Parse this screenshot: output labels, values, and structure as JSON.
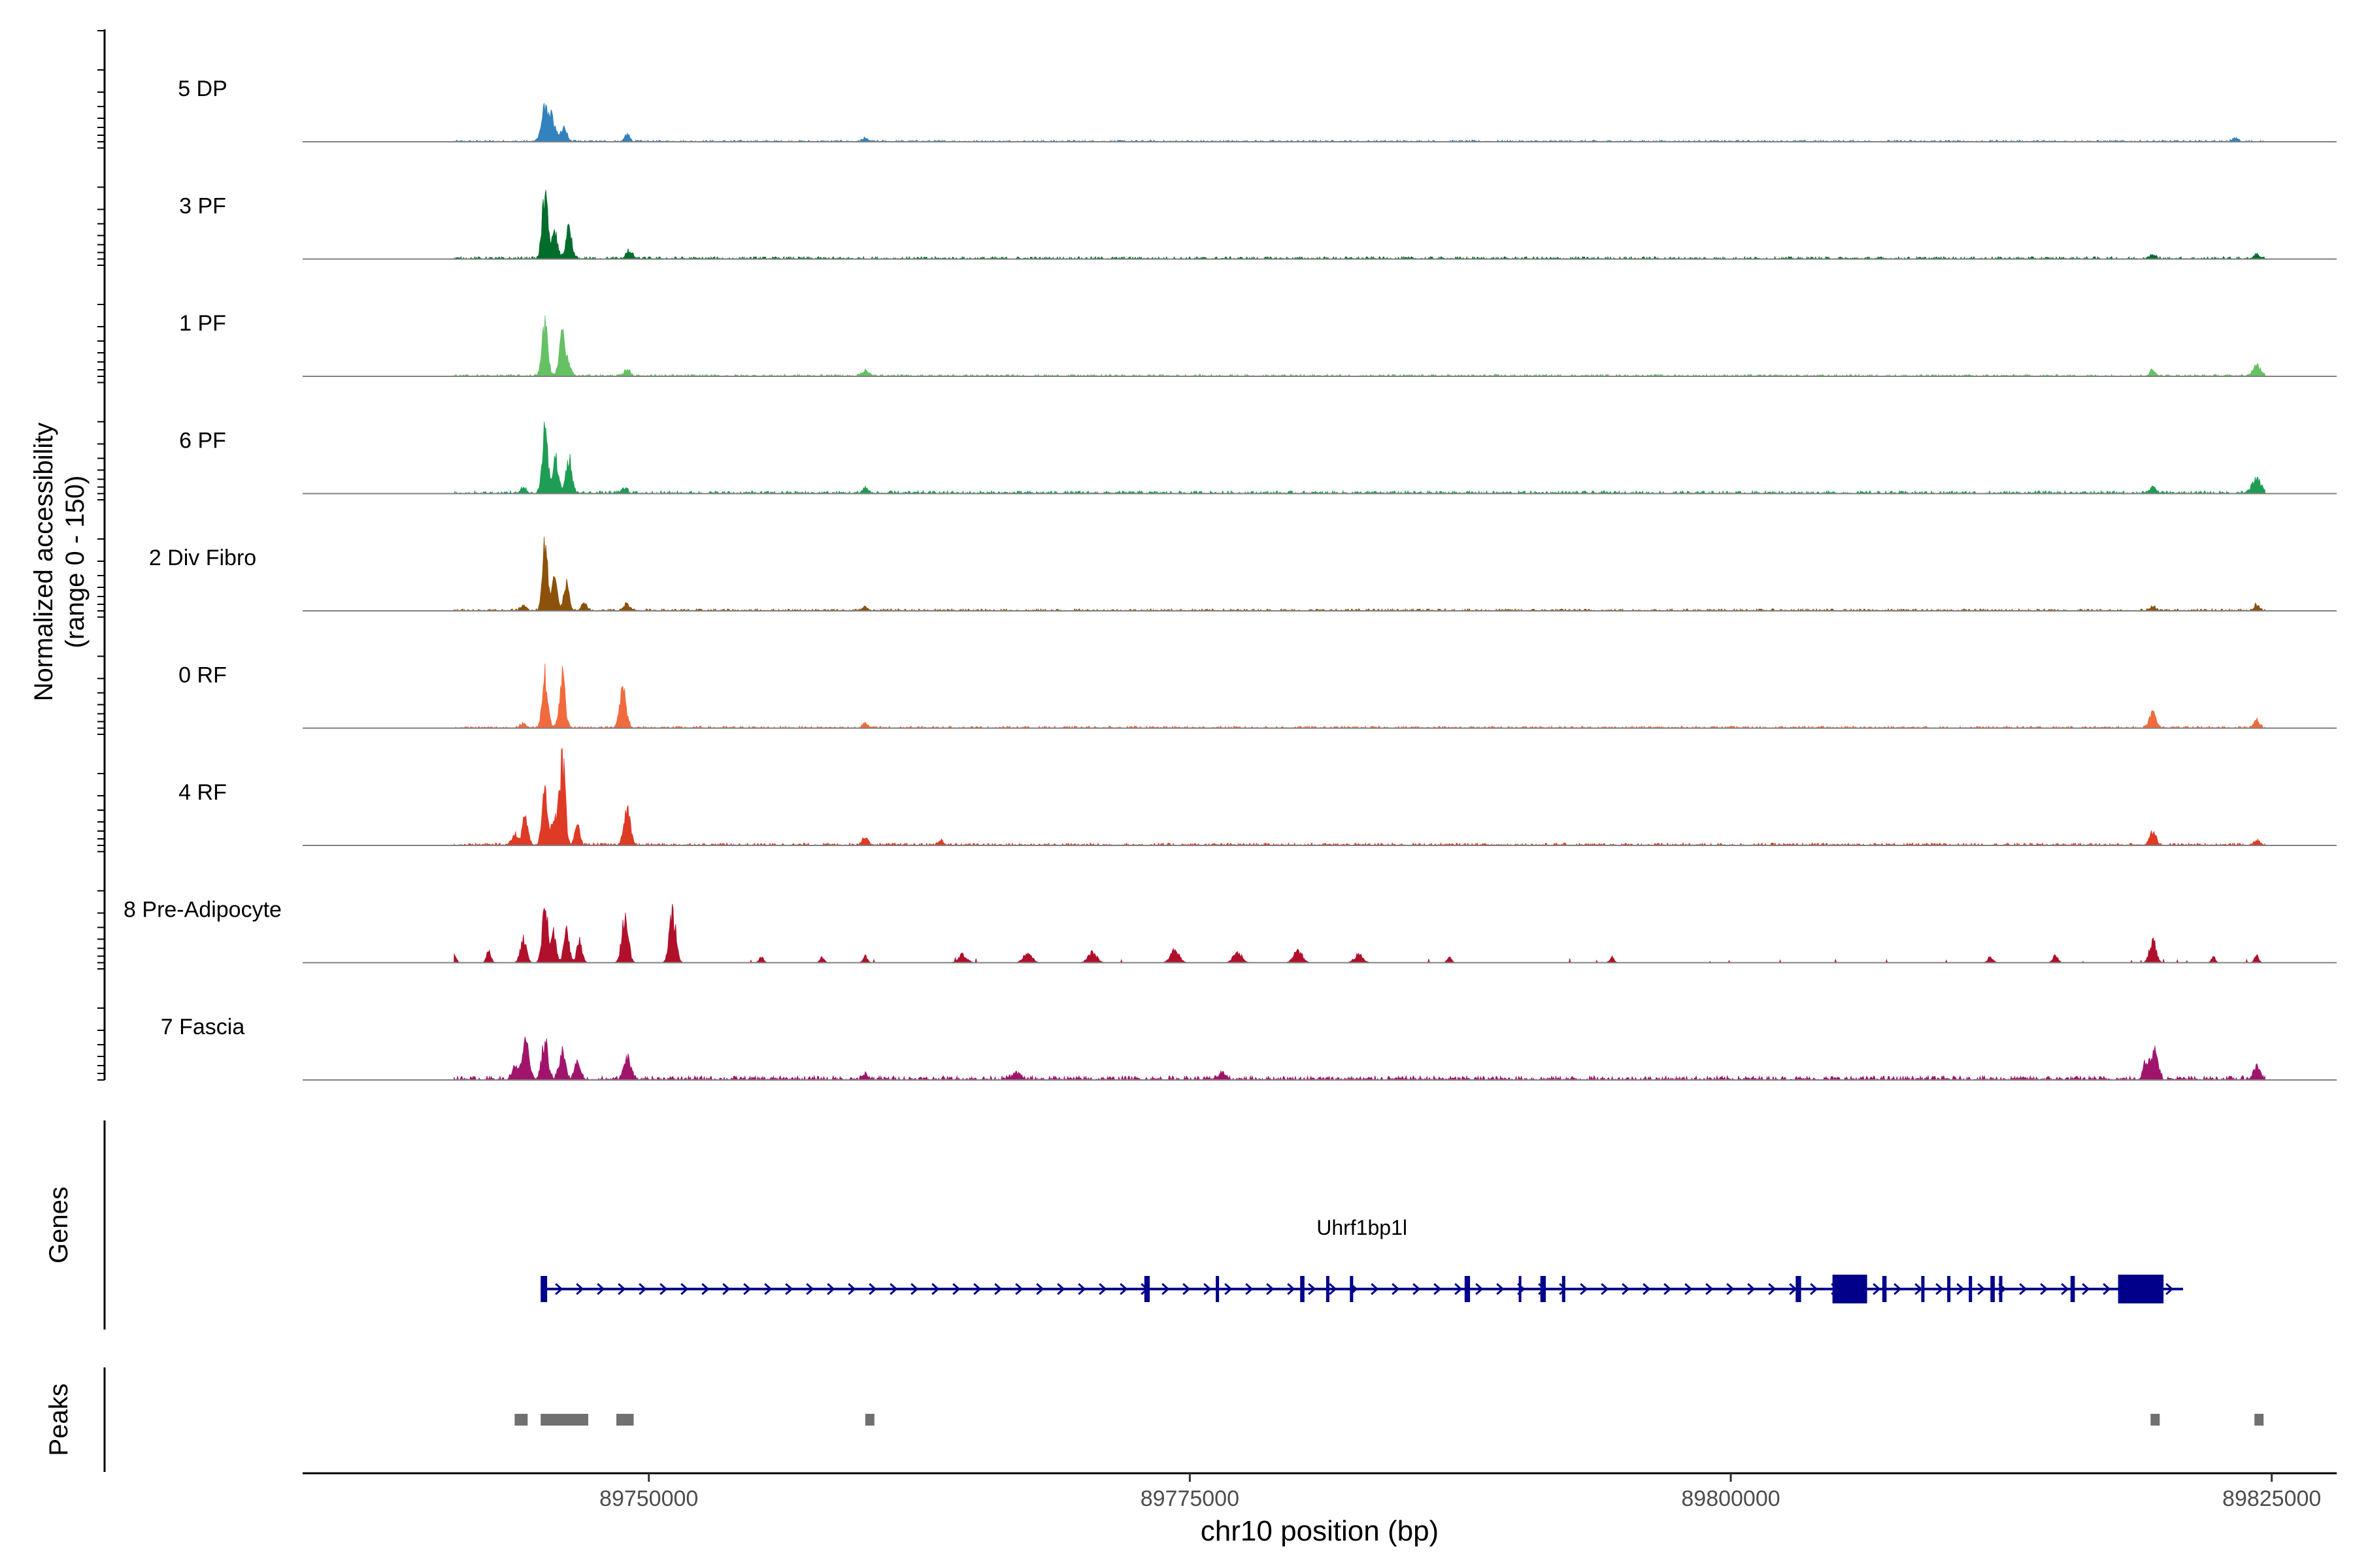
{
  "chart_data": {
    "type": "area",
    "title": "",
    "ylabel": "Normalized accessibility",
    "ylabel_range": "(range 0 - 150)",
    "ylim": [
      0,
      150
    ],
    "xlabel": "chr10 position (bp)",
    "xlim": [
      89734000,
      89828000
    ],
    "x_ticks": [
      89750000,
      89775000,
      89800000,
      89825000
    ],
    "x_tick_labels": [
      "89750000",
      "89775000",
      "89800000",
      "89825000"
    ],
    "tracks": [
      {
        "name": "5 DP",
        "color": "#3182bd",
        "background": 2.5,
        "peaks": [
          [
            89745200,
            60,
            160
          ],
          [
            89745550,
            40,
            130
          ],
          [
            89746050,
            26,
            140
          ],
          [
            89749000,
            12,
            120
          ],
          [
            89760000,
            5,
            120
          ],
          [
            89823300,
            6,
            120
          ]
        ]
      },
      {
        "name": "3 PF",
        "color": "#006d2c",
        "background": 3.5,
        "peaks": [
          [
            89745200,
            112,
            130
          ],
          [
            89745650,
            45,
            130
          ],
          [
            89746300,
            52,
            130
          ],
          [
            89749100,
            14,
            140
          ],
          [
            89819500,
            6,
            160
          ],
          [
            89824300,
            8,
            120
          ]
        ]
      },
      {
        "name": "1 PF",
        "color": "#66c164",
        "background": 3,
        "peaks": [
          [
            89745200,
            98,
            130
          ],
          [
            89746000,
            70,
            140
          ],
          [
            89746300,
            18,
            120
          ],
          [
            89749000,
            12,
            140
          ],
          [
            89760000,
            10,
            160
          ],
          [
            89819500,
            10,
            140
          ],
          [
            89824300,
            22,
            160
          ]
        ]
      },
      {
        "name": "6 PF",
        "color": "#1f9d55",
        "background": 4,
        "peaks": [
          [
            89744200,
            10,
            130
          ],
          [
            89745200,
            108,
            130
          ],
          [
            89745700,
            58,
            130
          ],
          [
            89746300,
            60,
            140
          ],
          [
            89748900,
            10,
            120
          ],
          [
            89760000,
            10,
            120
          ],
          [
            89819500,
            10,
            150
          ],
          [
            89824300,
            26,
            200
          ]
        ]
      },
      {
        "name": "2 Div Fibro",
        "color": "#8c510a",
        "background": 3,
        "peaks": [
          [
            89744200,
            10,
            130
          ],
          [
            89745200,
            118,
            120
          ],
          [
            89745650,
            55,
            120
          ],
          [
            89746200,
            48,
            120
          ],
          [
            89747000,
            12,
            120
          ],
          [
            89749000,
            12,
            140
          ],
          [
            89760000,
            6,
            120
          ],
          [
            89819500,
            8,
            120
          ],
          [
            89824300,
            10,
            120
          ]
        ]
      },
      {
        "name": "0 RF",
        "color": "#f16a3d",
        "background": 3,
        "peaks": [
          [
            89744200,
            8,
            120
          ],
          [
            89745200,
            92,
            130
          ],
          [
            89746000,
            92,
            130
          ],
          [
            89748800,
            70,
            150
          ],
          [
            89760000,
            8,
            120
          ],
          [
            89819500,
            26,
            150
          ],
          [
            89824300,
            16,
            120
          ]
        ]
      },
      {
        "name": "4 RF",
        "color": "#de3a25",
        "background": 3.5,
        "peaks": [
          [
            89743800,
            20,
            140
          ],
          [
            89744300,
            50,
            130
          ],
          [
            89745200,
            92,
            130
          ],
          [
            89745650,
            45,
            130
          ],
          [
            89746000,
            150,
            130
          ],
          [
            89746700,
            30,
            120
          ],
          [
            89749000,
            58,
            150
          ],
          [
            89760000,
            14,
            140
          ],
          [
            89763500,
            8,
            120
          ],
          [
            89819500,
            22,
            150
          ],
          [
            89824300,
            8,
            120
          ]
        ]
      },
      {
        "name": "8 Pre-Adipocyte",
        "color": "#b0102b",
        "background": 0,
        "peaks": [
          [
            89741000,
            14,
            100
          ],
          [
            89742600,
            22,
            100
          ],
          [
            89744200,
            40,
            140
          ],
          [
            89745200,
            98,
            130
          ],
          [
            89745600,
            50,
            120
          ],
          [
            89746200,
            65,
            120
          ],
          [
            89746800,
            40,
            120
          ],
          [
            89748900,
            80,
            150
          ],
          [
            89751100,
            86,
            150
          ],
          [
            89755200,
            10,
            100
          ],
          [
            89758000,
            10,
            100
          ],
          [
            89760000,
            12,
            100
          ],
          [
            89764500,
            14,
            200
          ],
          [
            89767500,
            18,
            200
          ],
          [
            89770500,
            18,
            200
          ],
          [
            89774300,
            24,
            200
          ],
          [
            89777200,
            18,
            200
          ],
          [
            89780000,
            22,
            200
          ],
          [
            89782800,
            14,
            200
          ],
          [
            89787000,
            10,
            100
          ],
          [
            89794500,
            10,
            100
          ],
          [
            89812000,
            10,
            120
          ],
          [
            89815000,
            12,
            120
          ],
          [
            89819500,
            40,
            150
          ],
          [
            89822300,
            10,
            100
          ],
          [
            89824300,
            12,
            100
          ]
        ]
      },
      {
        "name": "7 Fascia",
        "color": "#a0156b",
        "background": 6,
        "peaks": [
          [
            89743800,
            20,
            140
          ],
          [
            89744300,
            62,
            170
          ],
          [
            89745200,
            66,
            140
          ],
          [
            89746000,
            48,
            140
          ],
          [
            89746700,
            30,
            130
          ],
          [
            89749000,
            40,
            150
          ],
          [
            89760000,
            8,
            120
          ],
          [
            89767000,
            10,
            200
          ],
          [
            89776500,
            12,
            160
          ],
          [
            89819200,
            35,
            130
          ],
          [
            89819600,
            62,
            140
          ],
          [
            89824300,
            22,
            150
          ]
        ]
      }
    ],
    "genes": {
      "label": "Genes",
      "name": "Uhrf1bp1l",
      "strand": "+",
      "start": 89745000,
      "end": 89820900,
      "exons": [
        [
          89745000,
          89745300
        ],
        [
          89772900,
          89773150
        ],
        [
          89776200,
          89776350
        ],
        [
          89780100,
          89780300
        ],
        [
          89781300,
          89781450
        ],
        [
          89782400,
          89782550
        ],
        [
          89787700,
          89787950
        ],
        [
          89790200,
          89790300
        ],
        [
          89791200,
          89791450
        ],
        [
          89792200,
          89792350
        ],
        [
          89803000,
          89803250
        ],
        [
          89804700,
          89806300
        ],
        [
          89807000,
          89807200
        ],
        [
          89808800,
          89808950
        ],
        [
          89810000,
          89810150
        ],
        [
          89811000,
          89811150
        ],
        [
          89812000,
          89812200
        ],
        [
          89812400,
          89812550
        ],
        [
          89815700,
          89815900
        ],
        [
          89817900,
          89820000
        ]
      ]
    },
    "peaks_track": {
      "label": "Peaks",
      "regions": [
        [
          89743800,
          89744400
        ],
        [
          89745000,
          89747200
        ],
        [
          89748500,
          89749300
        ],
        [
          89760000,
          89760400
        ],
        [
          89819400,
          89819800
        ],
        [
          89824200,
          89824600
        ]
      ]
    }
  }
}
